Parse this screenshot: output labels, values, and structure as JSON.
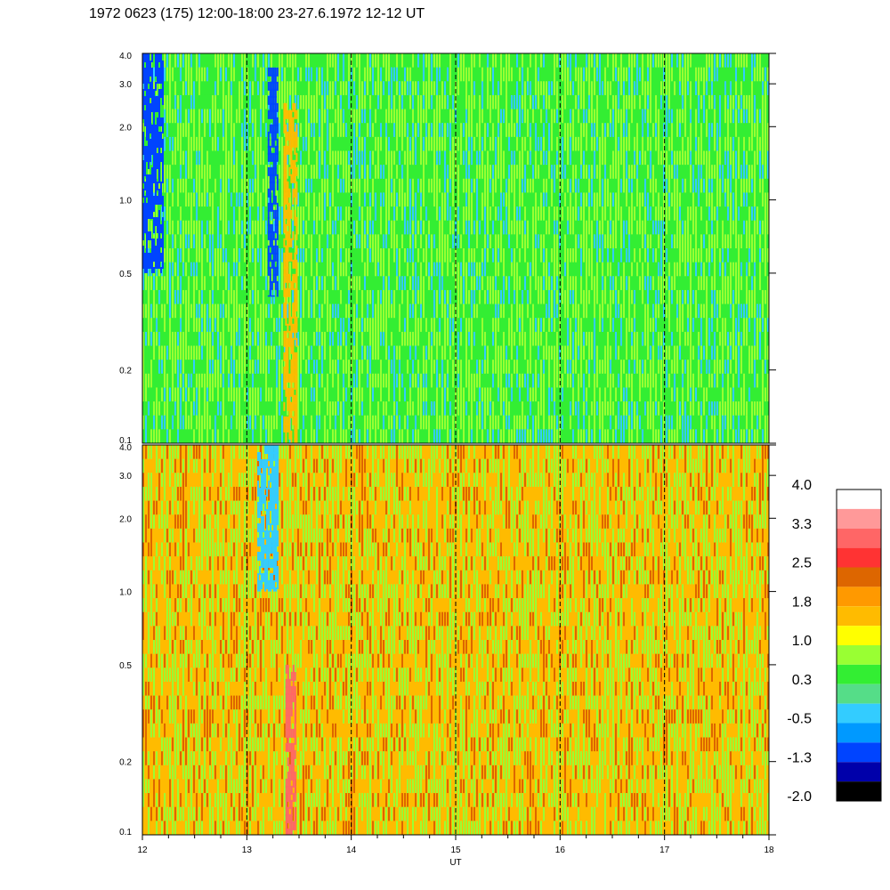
{
  "title": "1972 0623 (175) 12:00-18:00 23-27.6.1972  12-12 UT",
  "chart_data": {
    "type": "heatmap",
    "title": "1972 0623 (175) 12:00-18:00 23-27.6.1972  12-12 UT",
    "xlabel": "UT",
    "x_range": [
      12,
      18
    ],
    "x_ticks": [
      "12",
      "13",
      "14",
      "15",
      "16",
      "17",
      "18"
    ],
    "y_scale": "log",
    "y_range": [
      0.1,
      4.0
    ],
    "panels": [
      {
        "name": "upper",
        "y_ticks": [
          "4.0",
          "3.0",
          "2.0",
          "1.0",
          "0.5",
          "0.2",
          "0.1"
        ],
        "dominant_levels": [
          "0.3",
          "1.0",
          "-0.5"
        ],
        "features": [
          {
            "ut_start": 12.0,
            "ut_end": 12.2,
            "y_low": 0.5,
            "y_high": 4.0,
            "level": "-1.3"
          },
          {
            "ut_start": 13.2,
            "ut_end": 13.3,
            "y_low": 0.4,
            "y_high": 3.5,
            "level": "-1.3"
          },
          {
            "ut_start": 13.35,
            "ut_end": 13.47,
            "y_low": 0.1,
            "y_high": 2.5,
            "level": "1.8"
          }
        ]
      },
      {
        "name": "lower",
        "y_ticks": [
          "4.0",
          "3.0",
          "2.0",
          "1.0",
          "0.5",
          "0.2",
          "0.1"
        ],
        "dominant_levels": [
          "1.8",
          "1.0",
          "2.5"
        ],
        "features": [
          {
            "ut_start": 13.1,
            "ut_end": 13.3,
            "y_low": 1.0,
            "y_high": 4.0,
            "level": "-0.5"
          },
          {
            "ut_start": 13.37,
            "ut_end": 13.47,
            "y_low": 0.1,
            "y_high": 0.5,
            "level": "3.3"
          }
        ]
      }
    ],
    "colorbar": {
      "labels": [
        "4.0",
        "3.3",
        "2.5",
        "1.8",
        "1.0",
        "0.3",
        "-0.5",
        "-1.3",
        "-2.0"
      ],
      "colors": [
        "#ffffff",
        "#ff9999",
        "#ff6666",
        "#ff3333",
        "#dd6600",
        "#ff9900",
        "#ffbb00",
        "#ffff00",
        "#99ff33",
        "#33ee33",
        "#55dd88",
        "#33ccff",
        "#0099ff",
        "#0044ff",
        "#0000aa",
        "#000000"
      ]
    }
  }
}
